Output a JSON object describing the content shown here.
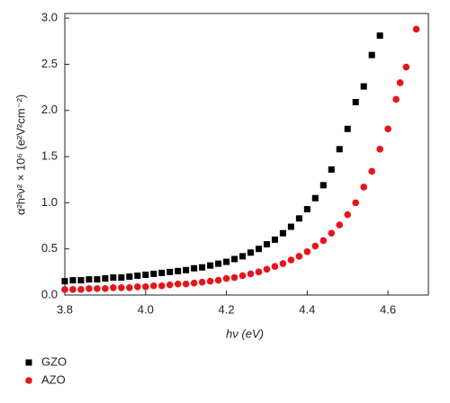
{
  "chart_data": {
    "type": "scatter",
    "xlabel": "hν (eV)",
    "ylabel": "α²h²ν² × 10⁶ (e²V²cm⁻²)",
    "xlim": [
      3.8,
      4.7
    ],
    "ylim": [
      0,
      3.05
    ],
    "xticks": [
      {
        "value": 3.8,
        "label": "3.8"
      },
      {
        "value": 4,
        "label": "4.0"
      },
      {
        "value": 4.2,
        "label": "4.2"
      },
      {
        "value": 4.4,
        "label": "4.4"
      },
      {
        "value": 4.6,
        "label": "4.6"
      }
    ],
    "yticks": [
      {
        "value": 0,
        "label": "0.0"
      },
      {
        "value": 0.5,
        "label": "0.5"
      },
      {
        "value": 1,
        "label": "1.0"
      },
      {
        "value": 1.5,
        "label": "1.5"
      },
      {
        "value": 2,
        "label": "2.0"
      },
      {
        "value": 2.5,
        "label": "2.5"
      },
      {
        "value": 3,
        "label": "3.0"
      }
    ],
    "series": [
      {
        "name": "GZO",
        "color": "#000000",
        "marker": "square",
        "x": [
          3.8,
          3.82,
          3.84,
          3.86,
          3.88,
          3.9,
          3.92,
          3.94,
          3.96,
          3.98,
          4.0,
          4.02,
          4.04,
          4.06,
          4.08,
          4.1,
          4.12,
          4.14,
          4.16,
          4.18,
          4.2,
          4.22,
          4.24,
          4.26,
          4.28,
          4.3,
          4.32,
          4.34,
          4.36,
          4.38,
          4.4,
          4.42,
          4.44,
          4.46,
          4.48,
          4.5,
          4.52,
          4.54,
          4.56,
          4.58
        ],
        "values": [
          0.15,
          0.16,
          0.16,
          0.17,
          0.17,
          0.18,
          0.19,
          0.19,
          0.2,
          0.21,
          0.22,
          0.23,
          0.24,
          0.25,
          0.26,
          0.27,
          0.29,
          0.3,
          0.32,
          0.34,
          0.36,
          0.39,
          0.42,
          0.46,
          0.5,
          0.55,
          0.6,
          0.67,
          0.74,
          0.83,
          0.93,
          1.05,
          1.19,
          1.36,
          1.58,
          1.8,
          2.09,
          2.26,
          2.6,
          2.81
        ]
      },
      {
        "name": "AZO",
        "color": "#e8141b",
        "marker": "circle",
        "x": [
          3.8,
          3.82,
          3.84,
          3.86,
          3.88,
          3.9,
          3.92,
          3.94,
          3.96,
          3.98,
          4.0,
          4.02,
          4.04,
          4.06,
          4.08,
          4.1,
          4.12,
          4.14,
          4.16,
          4.18,
          4.2,
          4.22,
          4.24,
          4.26,
          4.28,
          4.3,
          4.32,
          4.34,
          4.36,
          4.38,
          4.4,
          4.42,
          4.44,
          4.46,
          4.48,
          4.5,
          4.52,
          4.54,
          4.56,
          4.58,
          4.6,
          4.62,
          4.63,
          4.645,
          4.67
        ],
        "values": [
          0.06,
          0.06,
          0.06,
          0.07,
          0.07,
          0.07,
          0.08,
          0.08,
          0.08,
          0.09,
          0.09,
          0.1,
          0.1,
          0.11,
          0.12,
          0.12,
          0.13,
          0.14,
          0.15,
          0.16,
          0.18,
          0.19,
          0.21,
          0.23,
          0.25,
          0.28,
          0.31,
          0.34,
          0.38,
          0.42,
          0.47,
          0.53,
          0.59,
          0.67,
          0.76,
          0.87,
          1.0,
          1.17,
          1.34,
          1.58,
          1.8,
          2.12,
          2.3,
          2.47,
          2.88
        ]
      }
    ]
  }
}
